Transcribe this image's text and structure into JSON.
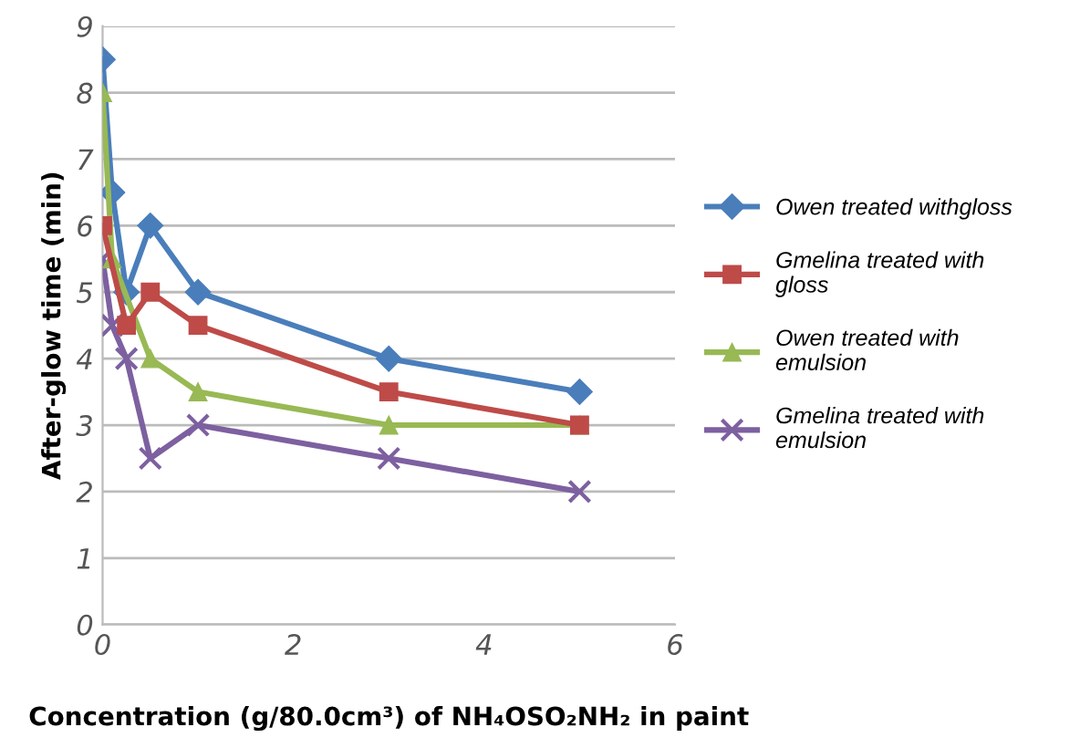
{
  "chart_data": {
    "type": "line",
    "xlabel": "Concentration (g/80.0cm³) of NH₄OSO₂NH₂ in paint",
    "ylabel": "After-glow time (min)",
    "xlim": [
      0,
      6
    ],
    "xticks": [
      0,
      2,
      4,
      6
    ],
    "ylim": [
      0,
      9
    ],
    "yticks": [
      0,
      1,
      2,
      3,
      4,
      5,
      6,
      7,
      8,
      9
    ],
    "grid": "y",
    "legend": "right",
    "series": [
      {
        "name": "Owen treated withgloss",
        "color": "#4a7ebb",
        "marker": "diamond",
        "x": [
          0,
          0.1,
          0.25,
          0.5,
          1,
          3,
          5
        ],
        "values": [
          8.5,
          6.5,
          5,
          6,
          5,
          4,
          3.5
        ]
      },
      {
        "name": "Gmelina treated with gloss",
        "color": "#be4b48",
        "marker": "square",
        "x": [
          0,
          0.25,
          0.5,
          1,
          3,
          5
        ],
        "values": [
          6,
          4.5,
          5,
          4.5,
          3.5,
          3
        ]
      },
      {
        "name": "Owen treated with emulsion",
        "color": "#98b954",
        "marker": "triangle",
        "x": [
          0,
          0.1,
          0.5,
          1,
          3,
          5
        ],
        "values": [
          8,
          5.5,
          4,
          3.5,
          3,
          3
        ]
      },
      {
        "name": "Gmelina treated with emulsion",
        "color": "#7d60a0",
        "marker": "cross",
        "x": [
          0,
          0.1,
          0.25,
          0.5,
          1,
          3,
          5
        ],
        "values": [
          5.5,
          4.5,
          4,
          2.5,
          3,
          2.5,
          2
        ]
      }
    ]
  }
}
